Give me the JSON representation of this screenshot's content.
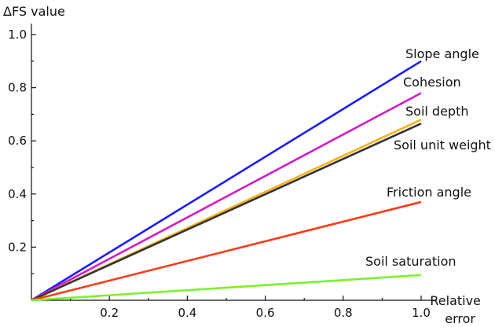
{
  "chart_data": {
    "type": "line",
    "ylabel": "ΔFS value",
    "xlabel_lines": [
      "Relative",
      "error"
    ],
    "xlim": [
      0,
      1.0
    ],
    "ylim": [
      0,
      1.0
    ],
    "x_ticks": [
      0.2,
      0.4,
      0.6,
      0.8,
      1.0
    ],
    "x_tick_labels": [
      "0.2",
      "0.4",
      "0.6",
      "0.8",
      "1.0"
    ],
    "y_ticks": [
      0.2,
      0.4,
      0.6,
      0.8,
      1.0
    ],
    "y_tick_labels": [
      "0.2",
      "0.4",
      "0.6",
      "0.8",
      "1.0"
    ],
    "grid": false,
    "legend": "inline labels at line ends",
    "series": [
      {
        "name": "Slope angle",
        "color": "#1a1aff",
        "x": [
          0,
          1.0
        ],
        "y": [
          0,
          0.9
        ]
      },
      {
        "name": "Cohesion",
        "color": "#d21dc8",
        "x": [
          0,
          1.0
        ],
        "y": [
          0,
          0.78
        ]
      },
      {
        "name": "Soil depth",
        "color": "#f7b21a",
        "x": [
          0,
          1.0
        ],
        "y": [
          0,
          0.68
        ]
      },
      {
        "name": "Soil unit weight",
        "color": "#333333",
        "x": [
          0,
          1.0
        ],
        "y": [
          0,
          0.665
        ]
      },
      {
        "name": "Friction angle",
        "color": "#ff3b1a",
        "x": [
          0,
          1.0
        ],
        "y": [
          0,
          0.37
        ]
      },
      {
        "name": "Soil saturation",
        "color": "#7cf22a",
        "x": [
          0,
          1.0
        ],
        "y": [
          0,
          0.095
        ]
      }
    ]
  }
}
